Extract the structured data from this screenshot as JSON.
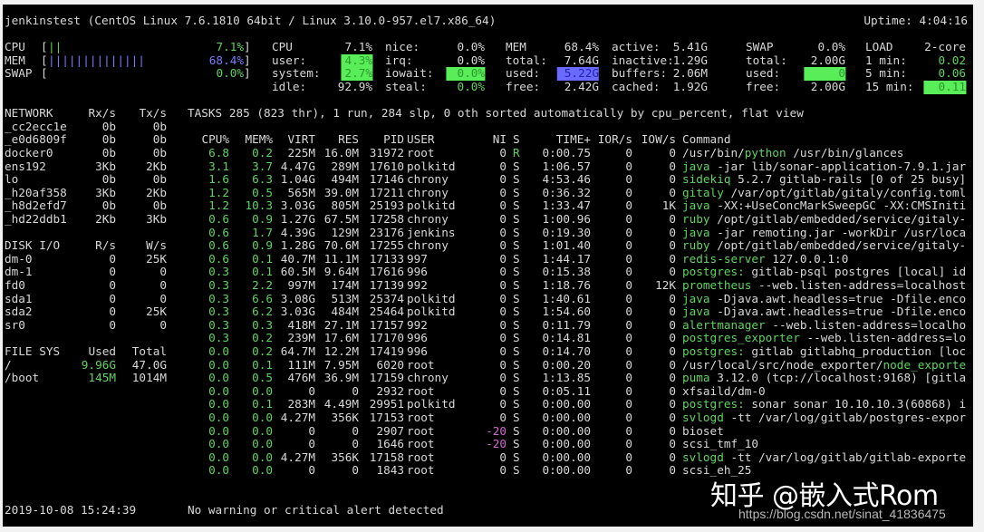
{
  "header": {
    "system": "jenkinstest (CentOS Linux 7.6.1810 64bit / Linux 3.10.0-957.el7.x86_64)",
    "uptime": "Uptime: 4:04:16"
  },
  "quicklook": [
    {
      "label": "CPU",
      "bar": "||",
      "value": "7.1%]",
      "color": "#5fd35f"
    },
    {
      "label": "MEM",
      "bar": "||||||||||||||",
      "value": "68.4%]",
      "color": "#7b7bff"
    },
    {
      "label": "SWAP",
      "bar": "",
      "value": "0.0%]",
      "color": "#5fd35f"
    }
  ],
  "cpu": {
    "title": "CPU",
    "total": "7.1%",
    "user_label": "user:",
    "user": "4.3%",
    "system_label": "system:",
    "system": "2.7%",
    "idle_label": "idle:",
    "idle": "92.9%",
    "nice_label": "nice:",
    "nice": "0.0%",
    "irq_label": "irq:",
    "irq": "0.0%",
    "iowait_label": "iowait:",
    "iowait": "0.0%",
    "steal_label": "steal:",
    "steal": "0.0%"
  },
  "mem": {
    "title": "MEM",
    "percent": "68.4%",
    "total_label": "total:",
    "total": "7.64G",
    "used_label": "used:",
    "used": "5.22G",
    "free_label": "free:",
    "free": "2.42G",
    "active_label": "active:",
    "active": "5.41G",
    "inactive_label": "inactive:",
    "inactive": "1.29G",
    "buffers_label": "buffers:",
    "buffers": "2.06M",
    "cached_label": "cached:",
    "cached": "1.92G"
  },
  "swap": {
    "title": "SWAP",
    "percent": "0.0%",
    "total_label": "total:",
    "total": "2.00G",
    "used_label": "used:",
    "used": "0",
    "free_label": "free:",
    "free": "2.00G"
  },
  "load": {
    "title": "LOAD",
    "cores": "2-core",
    "m1_label": "1 min:",
    "m1": "0.02",
    "m5_label": "5 min:",
    "m5": "0.06",
    "m15_label": "15 min:",
    "m15": "0.11"
  },
  "network": {
    "headers": [
      "NETWORK",
      "Rx/s",
      "Tx/s"
    ],
    "rows": [
      [
        "_cc2ecc1e",
        "0b",
        "0b"
      ],
      [
        "_e0d6809f",
        "0b",
        "0b"
      ],
      [
        "docker0",
        "0b",
        "0b"
      ],
      [
        "ens192",
        "3Kb",
        "2Kb"
      ],
      [
        "lo",
        "0b",
        "0b"
      ],
      [
        "_h20af358",
        "3Kb",
        "2Kb"
      ],
      [
        "_h8d2efd7",
        "0b",
        "0b"
      ],
      [
        "_hd22ddb1",
        "2Kb",
        "3Kb"
      ]
    ]
  },
  "diskio": {
    "headers": [
      "DISK I/O",
      "R/s",
      "W/s"
    ],
    "rows": [
      [
        "dm-0",
        "0",
        "25K"
      ],
      [
        "dm-1",
        "0",
        "0"
      ],
      [
        "fd0",
        "0",
        "0"
      ],
      [
        "sda1",
        "0",
        "0"
      ],
      [
        "sda2",
        "0",
        "25K"
      ],
      [
        "sr0",
        "0",
        "0"
      ]
    ]
  },
  "filesys": {
    "headers": [
      "FILE SYS",
      "Used",
      "Total"
    ],
    "rows": [
      [
        "/",
        "9.96G",
        "47.0G"
      ],
      [
        "/boot",
        "145M",
        "1014M"
      ]
    ]
  },
  "tasks": "TASKS 285 (823 thr), 1 run, 284 slp, 0 oth sorted automatically by cpu_percent, flat view",
  "processes": {
    "headers": [
      "CPU%",
      "MEM%",
      "VIRT",
      "RES",
      "PID",
      "USER",
      "NI",
      "S",
      "TIME+",
      "IOR/s",
      "IOW/s",
      "Command"
    ],
    "rows": [
      [
        "6.8",
        "0.2",
        "225M",
        "16.0M",
        "31972",
        "root",
        "0",
        "R",
        "0:00.75",
        "0",
        "0",
        "/usr/bin/",
        "python",
        " /usr/bin/glances"
      ],
      [
        "3.1",
        "3.7",
        "4.47G",
        "289M",
        "17610",
        "polkitd",
        "0",
        "S",
        "1:06.57",
        "0",
        "0",
        "",
        "java",
        " -jar lib/sonar-application-7.9.1.jar"
      ],
      [
        "1.6",
        "6.3",
        "1.04G",
        "494M",
        "17146",
        "chrony",
        "0",
        "S",
        "4:53.46",
        "0",
        "0",
        "",
        "sidekiq",
        " 5.2.7 gitlab-rails [0 of 25 busy]"
      ],
      [
        "1.2",
        "0.5",
        "565M",
        "39.0M",
        "17211",
        "chrony",
        "0",
        "S",
        "0:36.32",
        "0",
        "0",
        "",
        "gitaly",
        " /var/opt/gitlab/gitaly/config.toml"
      ],
      [
        "1.2",
        "10.3",
        "3.03G",
        "805M",
        "25193",
        "polkitd",
        "0",
        "S",
        "1:33.47",
        "0",
        "1K",
        "",
        "java",
        " -XX:+UseConcMarkSweepGC -XX:CMSIniti"
      ],
      [
        "0.6",
        "0.9",
        "1.27G",
        "67.5M",
        "17258",
        "chrony",
        "0",
        "S",
        "1:00.96",
        "0",
        "0",
        "",
        "ruby",
        " /opt/gitlab/embedded/service/gitaly-"
      ],
      [
        "0.6",
        "1.7",
        "4.39G",
        "129M",
        "23176",
        "jenkins",
        "0",
        "S",
        "0:19.30",
        "0",
        "0",
        "",
        "java",
        " -jar remoting.jar -workDir /usr/loca"
      ],
      [
        "0.6",
        "0.9",
        "1.28G",
        "70.6M",
        "17255",
        "chrony",
        "0",
        "S",
        "1:01.40",
        "0",
        "0",
        "",
        "ruby",
        " /opt/gitlab/embedded/service/gitaly-"
      ],
      [
        "0.6",
        "0.1",
        "40.7M",
        "11.1M",
        "17133",
        "997",
        "0",
        "S",
        "1:44.17",
        "0",
        "0",
        "",
        "redis-server",
        " 127.0.0.1:0"
      ],
      [
        "0.3",
        "0.1",
        "60.5M",
        "9.64M",
        "17616",
        "996",
        "0",
        "S",
        "0:15.38",
        "0",
        "0",
        "",
        "postgres:",
        " gitlab-psql postgres [local] id"
      ],
      [
        "0.3",
        "2.2",
        "997M",
        "174M",
        "17139",
        "992",
        "0",
        "S",
        "1:18.76",
        "0",
        "12K",
        "",
        "prometheus",
        " --web.listen-address=localhost"
      ],
      [
        "0.3",
        "6.6",
        "3.08G",
        "513M",
        "25374",
        "polkitd",
        "0",
        "S",
        "1:40.61",
        "0",
        "0",
        "",
        "java",
        " -Djava.awt.headless=true -Dfile.enco"
      ],
      [
        "0.3",
        "6.2",
        "3.03G",
        "484M",
        "25464",
        "polkitd",
        "0",
        "S",
        "1:54.60",
        "0",
        "0",
        "",
        "java",
        " -Djava.awt.headless=true -Dfile.enco"
      ],
      [
        "0.3",
        "0.3",
        "418M",
        "27.1M",
        "17157",
        "992",
        "0",
        "S",
        "0:11.79",
        "0",
        "0",
        "",
        "alertmanager",
        " --web.listen-address=localho"
      ],
      [
        "0.3",
        "0.2",
        "239M",
        "17.6M",
        "17170",
        "996",
        "0",
        "S",
        "0:14.81",
        "0",
        "0",
        "",
        "postgres_exporter",
        " --web.listen-address=lo"
      ],
      [
        "0.0",
        "0.2",
        "64.7M",
        "12.2M",
        "17419",
        "996",
        "0",
        "S",
        "0:14.70",
        "0",
        "0",
        "",
        "postgres:",
        " gitlab gitlabhq_production [loc"
      ],
      [
        "0.0",
        "0.1",
        "111M",
        "7.95M",
        "6020",
        "root",
        "0",
        "S",
        "0:00.20",
        "0",
        "0",
        "/usr/local/src/node_exporter/",
        "node_exporte",
        ""
      ],
      [
        "0.0",
        "0.5",
        "476M",
        "36.9M",
        "17159",
        "chrony",
        "0",
        "S",
        "1:13.85",
        "0",
        "0",
        "",
        "puma",
        " 3.12.0 (tcp://localhost:9168) [gitla"
      ],
      [
        "0.0",
        "0.0",
        "0",
        "0",
        "2932",
        "root",
        "0",
        "S",
        "0:05.11",
        "0",
        "0",
        "xfsaild/dm-0",
        "",
        ""
      ],
      [
        "0.0",
        "0.1",
        "283M",
        "4.49M",
        "29951",
        "polkitd",
        "0",
        "S",
        "0:00.00",
        "0",
        "0",
        "",
        "postgres:",
        " sonar sonar 10.10.10.3(60868) i"
      ],
      [
        "0.0",
        "0.0",
        "4.27M",
        "356K",
        "17153",
        "root",
        "0",
        "S",
        "0:00.00",
        "0",
        "0",
        "",
        "svlogd",
        " -tt /var/log/gitlab/postgres-expor"
      ],
      [
        "0.0",
        "0.0",
        "0",
        "0",
        "2907",
        "root",
        "-20",
        "S",
        "0:00.00",
        "0",
        "0",
        "bioset",
        "",
        ""
      ],
      [
        "0.0",
        "0.0",
        "0",
        "0",
        "1646",
        "root",
        "-20",
        "S",
        "0:00.00",
        "0",
        "0",
        "scsi_tmf_10",
        "",
        ""
      ],
      [
        "0.0",
        "0.0",
        "4.27M",
        "356K",
        "17158",
        "root",
        "0",
        "S",
        "0:00.00",
        "0",
        "0",
        "",
        "svlogd",
        " -tt /var/log/gitlab/gitlab-exporte"
      ],
      [
        "0.0",
        "0.0",
        "0",
        "0",
        "1843",
        "root",
        "0",
        "S",
        "0:00.00",
        "0",
        "0",
        "scsi_eh_25",
        "",
        ""
      ]
    ]
  },
  "footer": {
    "datetime": "2019-10-08 15:24:39",
    "alert": "No warning or critical alert detected"
  },
  "watermark": {
    "text": "知乎 @嵌入式Rom",
    "url": "https://blog.csdn.net/sinat_41836475"
  },
  "colors": {
    "background": "#000000",
    "text": "#d8d8d8",
    "ok_green": "#5fd35f",
    "highlight_green": "#5aed5a",
    "mem_blue": "#6a6aff",
    "nice_magenta": "#d36ad3"
  }
}
